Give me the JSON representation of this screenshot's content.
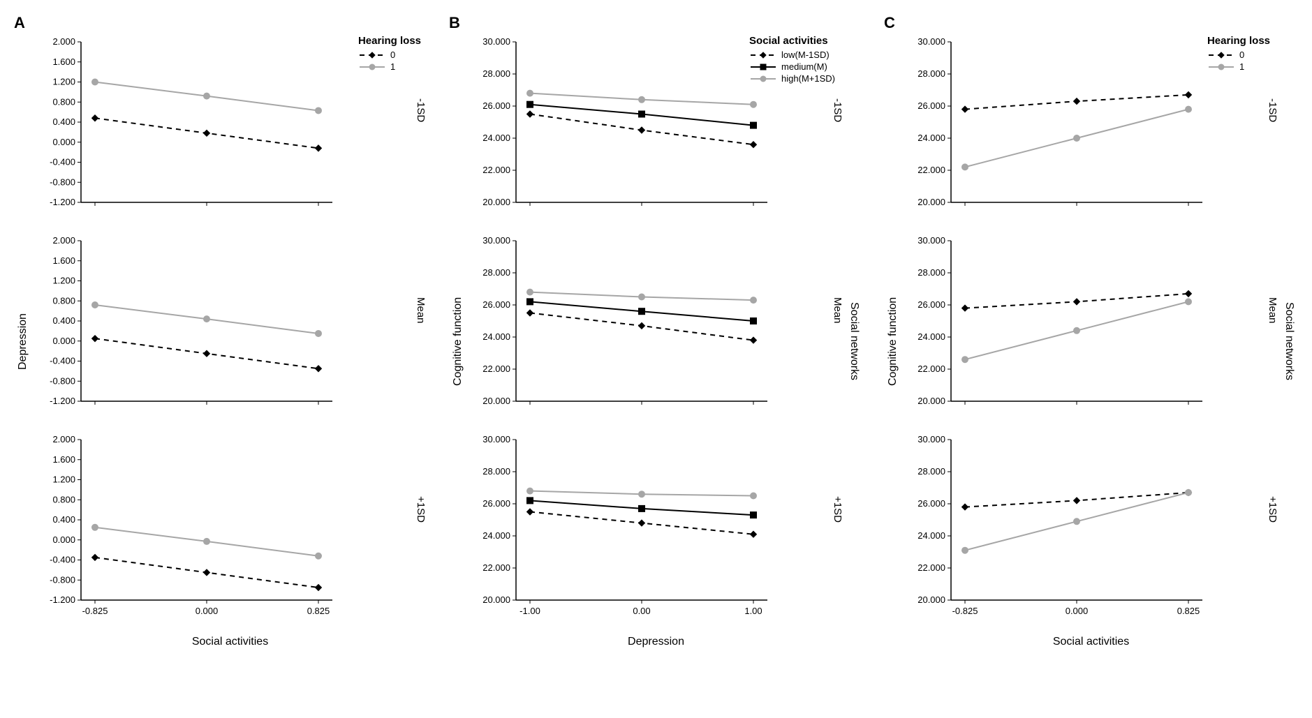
{
  "figure": {
    "background_color": "#ffffff",
    "axis_color": "#000000",
    "tick_font_size": 13,
    "label_font_size": 16,
    "marker_size": 4.5,
    "line_width": 2,
    "dash_pattern": "7,6",
    "colors": {
      "black": "#000000",
      "gray": "#a6a6a6"
    }
  },
  "columns": [
    {
      "letter": "A",
      "y_axis_label": "Depression",
      "x_axis_label": "Social activities",
      "outer_right_label": null,
      "x_ticks": [
        "-0.825",
        "0.000",
        "0.825"
      ],
      "y_lim": [
        -1.2,
        2.0
      ],
      "y_ticks": [
        "2.000",
        "1.600",
        "1.200",
        "0.800",
        "0.400",
        "0.000",
        "-0.400",
        "-0.800",
        "-1.200"
      ],
      "legend": {
        "title": "Hearing loss",
        "items": [
          {
            "label": "0",
            "style": "dashed",
            "color": "#000000",
            "marker": "diamond"
          },
          {
            "label": "1",
            "style": "solid",
            "color": "#a6a6a6",
            "marker": "circle"
          }
        ]
      },
      "panels": [
        {
          "right_label": "-1SD",
          "series": [
            {
              "style": "dashed",
              "color": "#000000",
              "marker": "diamond",
              "y": [
                0.48,
                0.18,
                -0.12
              ]
            },
            {
              "style": "solid",
              "color": "#a6a6a6",
              "marker": "circle",
              "y": [
                1.2,
                0.92,
                0.63
              ]
            }
          ]
        },
        {
          "right_label": "Mean",
          "series": [
            {
              "style": "dashed",
              "color": "#000000",
              "marker": "diamond",
              "y": [
                0.05,
                -0.25,
                -0.55
              ]
            },
            {
              "style": "solid",
              "color": "#a6a6a6",
              "marker": "circle",
              "y": [
                0.72,
                0.44,
                0.15
              ]
            }
          ]
        },
        {
          "right_label": "+1SD",
          "series": [
            {
              "style": "dashed",
              "color": "#000000",
              "marker": "diamond",
              "y": [
                -0.35,
                -0.65,
                -0.95
              ]
            },
            {
              "style": "solid",
              "color": "#a6a6a6",
              "marker": "circle",
              "y": [
                0.25,
                -0.03,
                -0.32
              ]
            }
          ]
        }
      ]
    },
    {
      "letter": "B",
      "y_axis_label": "Cognitive function",
      "x_axis_label": "Depression",
      "outer_right_label": "Social networks",
      "x_ticks": [
        "-1.00",
        "0.00",
        "1.00"
      ],
      "y_lim": [
        20.0,
        30.0
      ],
      "y_ticks": [
        "30.000",
        "28.000",
        "26.000",
        "24.000",
        "22.000",
        "20.000"
      ],
      "legend": {
        "title": "Social activities",
        "items": [
          {
            "label": "low(M-1SD)",
            "style": "dashed",
            "color": "#000000",
            "marker": "diamond"
          },
          {
            "label": "medium(M)",
            "style": "solid",
            "color": "#000000",
            "marker": "square"
          },
          {
            "label": "high(M+1SD)",
            "style": "solid",
            "color": "#a6a6a6",
            "marker": "circle"
          }
        ]
      },
      "panels": [
        {
          "right_label": "-1SD",
          "series": [
            {
              "style": "dashed",
              "color": "#000000",
              "marker": "diamond",
              "y": [
                25.5,
                24.5,
                23.6
              ]
            },
            {
              "style": "solid",
              "color": "#000000",
              "marker": "square",
              "y": [
                26.1,
                25.5,
                24.8
              ]
            },
            {
              "style": "solid",
              "color": "#a6a6a6",
              "marker": "circle",
              "y": [
                26.8,
                26.4,
                26.1
              ]
            }
          ]
        },
        {
          "right_label": "Mean",
          "series": [
            {
              "style": "dashed",
              "color": "#000000",
              "marker": "diamond",
              "y": [
                25.5,
                24.7,
                23.8
              ]
            },
            {
              "style": "solid",
              "color": "#000000",
              "marker": "square",
              "y": [
                26.2,
                25.6,
                25.0
              ]
            },
            {
              "style": "solid",
              "color": "#a6a6a6",
              "marker": "circle",
              "y": [
                26.8,
                26.5,
                26.3
              ]
            }
          ]
        },
        {
          "right_label": "+1SD",
          "series": [
            {
              "style": "dashed",
              "color": "#000000",
              "marker": "diamond",
              "y": [
                25.5,
                24.8,
                24.1
              ]
            },
            {
              "style": "solid",
              "color": "#000000",
              "marker": "square",
              "y": [
                26.2,
                25.7,
                25.3
              ]
            },
            {
              "style": "solid",
              "color": "#a6a6a6",
              "marker": "circle",
              "y": [
                26.8,
                26.6,
                26.5
              ]
            }
          ]
        }
      ]
    },
    {
      "letter": "C",
      "y_axis_label": "Cognitive function",
      "x_axis_label": "Social activities",
      "outer_right_label": "Social networks",
      "x_ticks": [
        "-0.825",
        "0.000",
        "0.825"
      ],
      "y_lim": [
        20.0,
        30.0
      ],
      "y_ticks": [
        "30.000",
        "28.000",
        "26.000",
        "24.000",
        "22.000",
        "20.000"
      ],
      "legend": {
        "title": "Hearing loss",
        "items": [
          {
            "label": "0",
            "style": "dashed",
            "color": "#000000",
            "marker": "diamond"
          },
          {
            "label": "1",
            "style": "solid",
            "color": "#a6a6a6",
            "marker": "circle"
          }
        ]
      },
      "panels": [
        {
          "right_label": "-1SD",
          "series": [
            {
              "style": "dashed",
              "color": "#000000",
              "marker": "diamond",
              "y": [
                25.8,
                26.3,
                26.7
              ]
            },
            {
              "style": "solid",
              "color": "#a6a6a6",
              "marker": "circle",
              "y": [
                22.2,
                24.0,
                25.8
              ]
            }
          ]
        },
        {
          "right_label": "Mean",
          "series": [
            {
              "style": "dashed",
              "color": "#000000",
              "marker": "diamond",
              "y": [
                25.8,
                26.2,
                26.7
              ]
            },
            {
              "style": "solid",
              "color": "#a6a6a6",
              "marker": "circle",
              "y": [
                22.6,
                24.4,
                26.2
              ]
            }
          ]
        },
        {
          "right_label": "+1SD",
          "series": [
            {
              "style": "dashed",
              "color": "#000000",
              "marker": "diamond",
              "y": [
                25.8,
                26.2,
                26.7
              ]
            },
            {
              "style": "solid",
              "color": "#a6a6a6",
              "marker": "circle",
              "y": [
                23.1,
                24.9,
                26.7
              ]
            }
          ]
        }
      ]
    }
  ]
}
